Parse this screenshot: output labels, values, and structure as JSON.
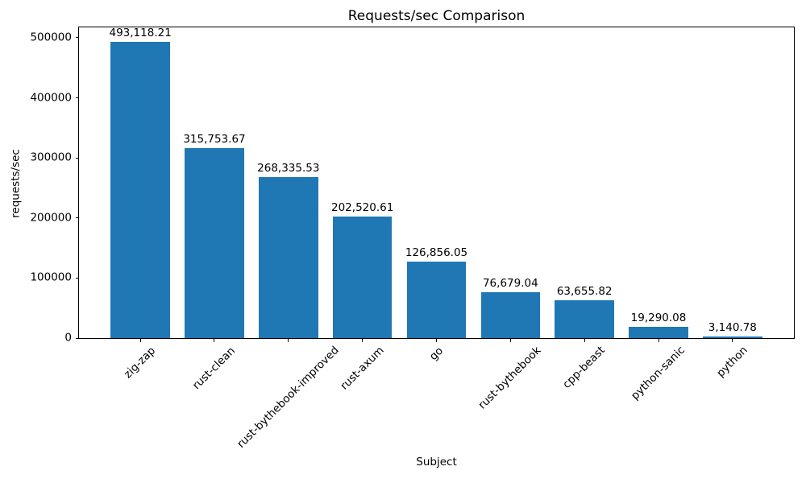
{
  "figure": {
    "background": "#ffffff"
  },
  "chart_data": {
    "type": "bar",
    "title": "Requests/sec Comparison",
    "xlabel": "Subject",
    "ylabel": "requests/sec",
    "categories": [
      "zig-zap",
      "rust-clean",
      "rust-bythebook-improved",
      "rust-axum",
      "go",
      "rust-bythebook",
      "cpp-beast",
      "python-sanic",
      "python"
    ],
    "values": [
      493118.21,
      315753.67,
      268335.53,
      202520.61,
      126856.05,
      76679.04,
      63655.82,
      19290.08,
      3140.78
    ],
    "value_labels": [
      "493,118.21",
      "315,753.67",
      "268,335.53",
      "202,520.61",
      "126,856.05",
      "76,679.04",
      "63,655.82",
      "19,290.08",
      "3,140.78"
    ],
    "bar_color": "#1f77b4",
    "axis_color": "#000000",
    "text_color": "#000000",
    "ylim": [
      0,
      518700
    ],
    "yticks": {
      "values": [
        0,
        100000,
        200000,
        300000,
        400000,
        500000
      ],
      "labels": [
        "0",
        "100000",
        "200000",
        "300000",
        "400000",
        "500000"
      ]
    },
    "grid": false,
    "legend_position": "none",
    "x_tick_rotation_deg": 45
  }
}
